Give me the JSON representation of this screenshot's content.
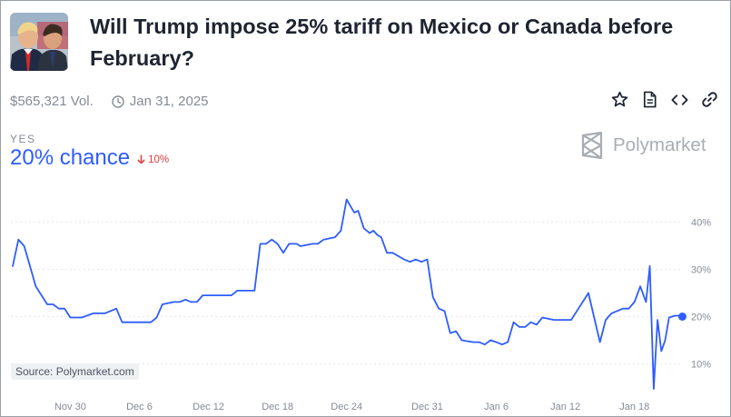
{
  "header": {
    "title": "Will Trump impose 25% tariff on Mexico or Canada before February?",
    "volume": "$565,321 Vol.",
    "end_date": "Jan 31, 2025"
  },
  "icons": {
    "date": "clock-icon",
    "star": "star-icon",
    "document": "document-icon",
    "embed": "code-icon",
    "link": "link-icon",
    "down_arrow": "arrow-down-icon",
    "brand": "polymarket-logo-icon"
  },
  "outcome": {
    "label": "YES",
    "chance": "20% chance",
    "change": "10%"
  },
  "brand": {
    "name": "Polymarket"
  },
  "source": "Source: Polymarket.com",
  "colors": {
    "line": "#2e5cff",
    "title": "#1e2430",
    "muted": "#858b94",
    "negative": "#e23c3c",
    "grid": "#e6e8eb"
  },
  "chart_data": {
    "type": "line",
    "title": "",
    "xlabel": "",
    "ylabel": "",
    "x_tick_labels": [
      "Nov 30",
      "Dec 6",
      "Dec 12",
      "Dec 18",
      "Dec 24",
      "Dec 31",
      "Jan 6",
      "Jan 12",
      "Jan 18"
    ],
    "y_tick_labels": [
      "10%",
      "20%",
      "30%",
      "40%"
    ],
    "y_ticks": [
      10,
      20,
      30,
      40
    ],
    "ylim": [
      3,
      45.5
    ],
    "grid": "horizontal dotted",
    "series": [
      {
        "name": "",
        "x_dates": [
          "2024-11-25",
          "2024-11-25",
          "2024-11-26",
          "2024-11-26",
          "2024-11-27",
          "2024-11-28",
          "2024-11-28",
          "2024-11-29",
          "2024-11-29",
          "2024-11-30",
          "2024-11-30",
          "2024-12-01",
          "2024-12-02",
          "2024-12-03",
          "2024-12-04",
          "2024-12-04",
          "2024-12-05",
          "2024-12-05",
          "2024-12-06",
          "2024-12-07",
          "2024-12-07",
          "2024-12-08",
          "2024-12-09",
          "2024-12-09",
          "2024-12-10",
          "2024-12-10",
          "2024-12-11",
          "2024-12-11",
          "2024-12-12",
          "2024-12-13",
          "2024-12-14",
          "2024-12-14",
          "2024-12-15",
          "2024-12-16",
          "2024-12-16",
          "2024-12-17",
          "2024-12-17",
          "2024-12-18",
          "2024-12-18",
          "2024-12-19",
          "2024-12-19",
          "2024-12-19",
          "2024-12-20",
          "2024-12-21",
          "2024-12-21",
          "2024-12-22",
          "2024-12-23",
          "2024-12-23",
          "2024-12-24",
          "2024-12-24",
          "2024-12-24",
          "2024-12-25",
          "2024-12-25",
          "2024-12-26",
          "2024-12-26",
          "2024-12-26",
          "2024-12-27",
          "2024-12-27",
          "2024-12-28",
          "2024-12-29",
          "2024-12-29",
          "2024-12-30",
          "2024-12-30",
          "2024-12-31",
          "2024-12-31",
          "2025-01-01",
          "2025-01-01",
          "2025-01-02",
          "2025-01-02",
          "2025-01-03",
          "2025-01-04",
          "2025-01-04",
          "2025-01-05",
          "2025-01-05",
          "2025-01-06",
          "2025-01-06",
          "2025-01-07",
          "2025-01-07",
          "2025-01-08",
          "2025-01-08",
          "2025-01-09",
          "2025-01-09",
          "2025-01-10",
          "2025-01-11",
          "2025-01-12",
          "2025-01-12",
          "2025-01-13",
          "2025-01-14",
          "2025-01-14",
          "2025-01-15",
          "2025-01-15",
          "2025-01-16",
          "2025-01-17",
          "2025-01-17",
          "2025-01-18",
          "2025-01-18",
          "2025-01-19",
          "2025-01-19",
          "2025-01-19",
          "2025-01-20",
          "2025-01-20",
          "2025-01-20",
          "2025-01-21",
          "2025-01-21",
          "2025-01-22"
        ],
        "values": [
          30.7,
          36.3,
          34.9,
          30.7,
          26.4,
          22.6,
          22.6,
          21.7,
          21.7,
          19.8,
          19.8,
          19.8,
          20.7,
          20.7,
          21.7,
          18.8,
          18.8,
          18.8,
          18.8,
          18.8,
          19.8,
          22.6,
          23.1,
          23.1,
          23.6,
          23.1,
          23.1,
          24.5,
          24.5,
          24.5,
          24.5,
          25.5,
          25.5,
          25.5,
          35.4,
          35.4,
          36.3,
          35.4,
          33.5,
          35.4,
          35.4,
          35.4,
          34.9,
          35.4,
          35.4,
          36.3,
          36.8,
          38.2,
          44.8,
          43.4,
          42.0,
          42.4,
          38.7,
          37.7,
          38.2,
          37.3,
          36.8,
          33.5,
          33.5,
          32.1,
          31.6,
          32.1,
          31.6,
          32.1,
          24.1,
          21.7,
          21.2,
          16.5,
          16.9,
          15.0,
          14.6,
          14.6,
          14.1,
          15.0,
          14.6,
          14.1,
          14.6,
          18.8,
          17.8,
          17.8,
          18.8,
          18.3,
          19.8,
          19.3,
          19.3,
          19.3,
          21.2,
          25.0,
          19.8,
          14.6,
          19.3,
          20.7,
          21.7,
          21.7,
          23.1,
          26.4,
          23.1,
          30.7,
          4.7,
          19.3,
          12.7,
          15.0,
          19.8,
          20.2,
          20.2
        ]
      }
    ],
    "current_value": 20
  }
}
